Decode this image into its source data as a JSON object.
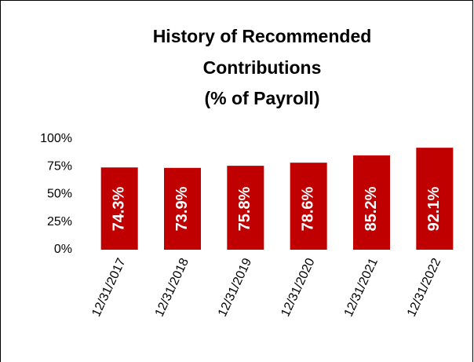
{
  "chart_data": {
    "type": "bar",
    "title": [
      "History of Recommended",
      "Contributions",
      "(% of Payroll)"
    ],
    "categories": [
      "12/31/2017",
      "12/31/2018",
      "12/31/2019",
      "12/31/2020",
      "12/31/2021",
      "12/31/2022"
    ],
    "values": [
      74.3,
      73.9,
      75.8,
      78.6,
      85.2,
      92.1
    ],
    "value_labels": [
      "74.3%",
      "73.9%",
      "75.8%",
      "78.6%",
      "85.2%",
      "92.1%"
    ],
    "color": "#c00000",
    "ylim": [
      0,
      100
    ],
    "yticks": [
      {
        "value": 0,
        "label": "0%"
      },
      {
        "value": 25,
        "label": "25%"
      },
      {
        "value": 50,
        "label": "50%"
      },
      {
        "value": 75,
        "label": "75%"
      },
      {
        "value": 100,
        "label": "100%"
      }
    ],
    "grid": false
  }
}
